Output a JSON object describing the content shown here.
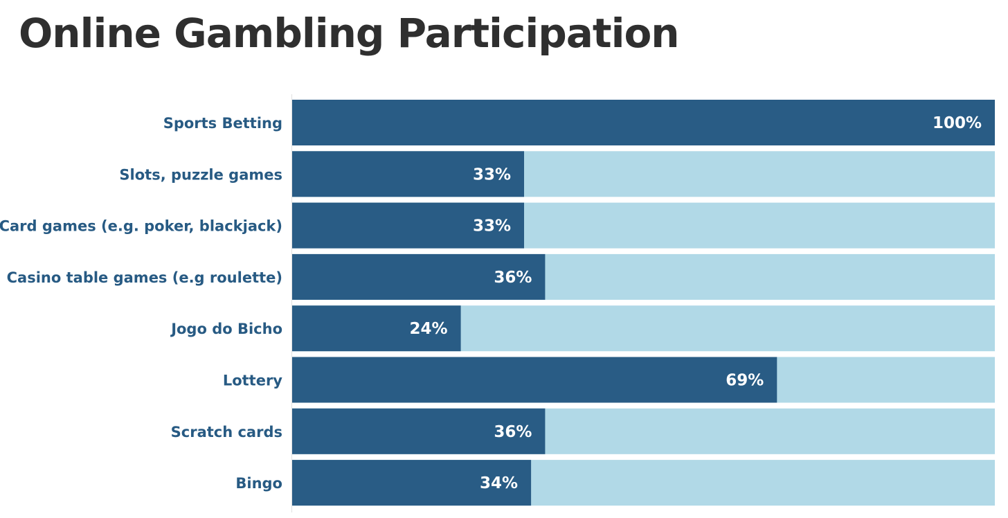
{
  "title": "Online Gambling Participation",
  "colors": {
    "bar": "#295c85",
    "track": "#b1d9e7",
    "label": "#275a83",
    "title": "#2f2f2f"
  },
  "chart_data": {
    "type": "bar",
    "orientation": "horizontal",
    "title": "Online Gambling Participation",
    "categories": [
      "Sports Betting",
      "Slots, puzzle games",
      "Card games (e.g. poker, blackjack)",
      "Casino table games (e.g roulette)",
      "Jogo do Bicho",
      "Lottery",
      "Scratch cards",
      "Bingo"
    ],
    "values": [
      100,
      33,
      33,
      36,
      24,
      69,
      36,
      34
    ],
    "value_labels": [
      "100%",
      "33%",
      "33%",
      "36%",
      "24%",
      "69%",
      "36%",
      "34%"
    ],
    "xlim": [
      0,
      100
    ],
    "unit": "%",
    "grid": false,
    "legend": "none"
  }
}
